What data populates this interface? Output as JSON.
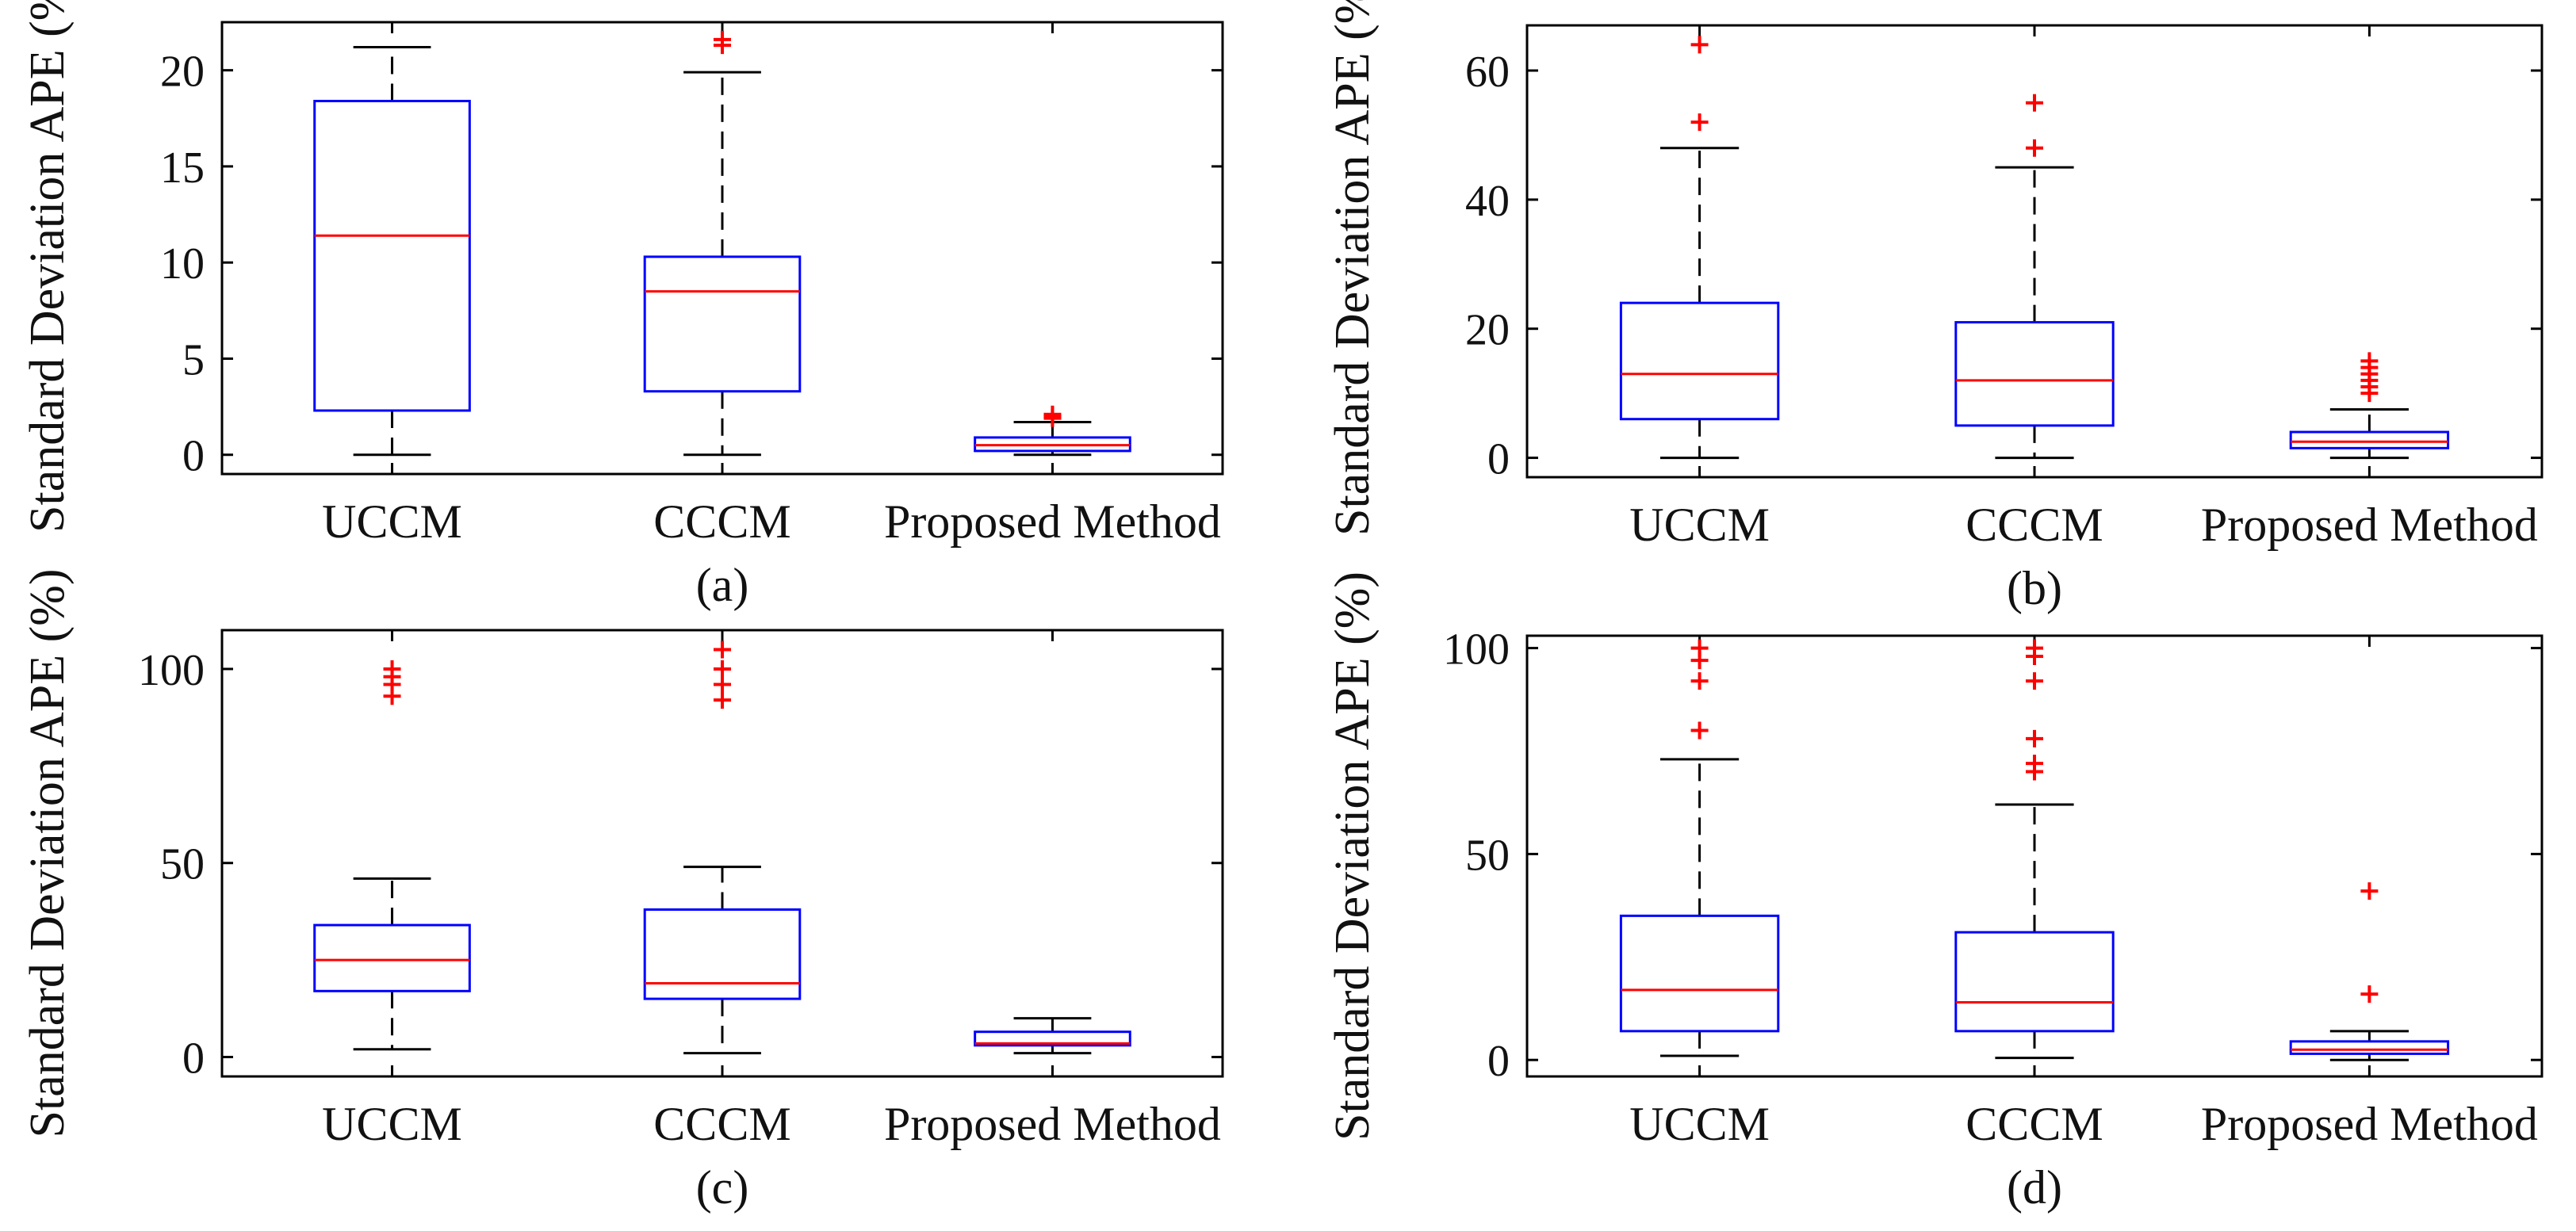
{
  "colors": {
    "box": "#0000ff",
    "median": "#ff0000",
    "outlier": "#ff0000",
    "whisker": "#000000",
    "axis": "#000000"
  },
  "chart_data": [
    {
      "type": "box",
      "panel_label": "(a)",
      "ylabel": "Standard Deviation APE (%)",
      "ylim": [
        -1,
        22.5
      ],
      "yticks": [
        0,
        5,
        10,
        15,
        20
      ],
      "categories": [
        "UCCM",
        "CCCM",
        "Proposed Method"
      ],
      "boxes": [
        {
          "min": 0,
          "q1": 2.3,
          "median": 11.4,
          "q3": 18.4,
          "max": 21.2,
          "outliers": []
        },
        {
          "min": 0,
          "q1": 3.3,
          "median": 8.5,
          "q3": 10.3,
          "max": 19.9,
          "outliers": [
            21.3,
            21.6
          ]
        },
        {
          "min": 0,
          "q1": 0.2,
          "median": 0.5,
          "q3": 0.9,
          "max": 1.7,
          "outliers": [
            1.9,
            2.0,
            2.1
          ]
        }
      ]
    },
    {
      "type": "box",
      "panel_label": "(b)",
      "ylabel": "Standard Deviation APE (%)",
      "ylim": [
        -3,
        67
      ],
      "yticks": [
        0,
        20,
        40,
        60
      ],
      "categories": [
        "UCCM",
        "CCCM",
        "Proposed Method"
      ],
      "boxes": [
        {
          "min": 0,
          "q1": 6,
          "median": 13,
          "q3": 24,
          "max": 48,
          "outliers": [
            52,
            64
          ]
        },
        {
          "min": 0,
          "q1": 5,
          "median": 12,
          "q3": 21,
          "max": 45,
          "outliers": [
            48,
            55
          ]
        },
        {
          "min": 0,
          "q1": 1.5,
          "median": 2.5,
          "q3": 4,
          "max": 7.5,
          "outliers": [
            10,
            11,
            12,
            13,
            14,
            15
          ]
        }
      ]
    },
    {
      "type": "box",
      "panel_label": "(c)",
      "ylabel": "Standard Deviation APE (%)",
      "ylim": [
        -5,
        110
      ],
      "yticks": [
        0,
        50,
        100
      ],
      "categories": [
        "UCCM",
        "CCCM",
        "Proposed Method"
      ],
      "boxes": [
        {
          "min": 2,
          "q1": 17,
          "median": 25,
          "q3": 34,
          "max": 46,
          "outliers": [
            93,
            96,
            98,
            100
          ]
        },
        {
          "min": 1,
          "q1": 15,
          "median": 19,
          "q3": 38,
          "max": 49,
          "outliers": [
            92,
            96,
            100,
            105
          ]
        },
        {
          "min": 1,
          "q1": 3,
          "median": 3.5,
          "q3": 6.5,
          "max": 10,
          "outliers": []
        }
      ]
    },
    {
      "type": "box",
      "panel_label": "(d)",
      "ylabel": "Standard Deviation APE (%)",
      "ylim": [
        -4,
        103
      ],
      "yticks": [
        0,
        50,
        100
      ],
      "categories": [
        "UCCM",
        "CCCM",
        "Proposed Method"
      ],
      "boxes": [
        {
          "min": 1,
          "q1": 7,
          "median": 17,
          "q3": 35,
          "max": 73,
          "outliers": [
            80,
            92,
            97,
            100
          ]
        },
        {
          "min": 0.5,
          "q1": 7,
          "median": 14,
          "q3": 31,
          "max": 62,
          "outliers": [
            70,
            72,
            78,
            92,
            98,
            100
          ]
        },
        {
          "min": 0,
          "q1": 1.5,
          "median": 2.5,
          "q3": 4.5,
          "max": 7,
          "outliers": [
            16,
            41
          ]
        }
      ]
    }
  ]
}
